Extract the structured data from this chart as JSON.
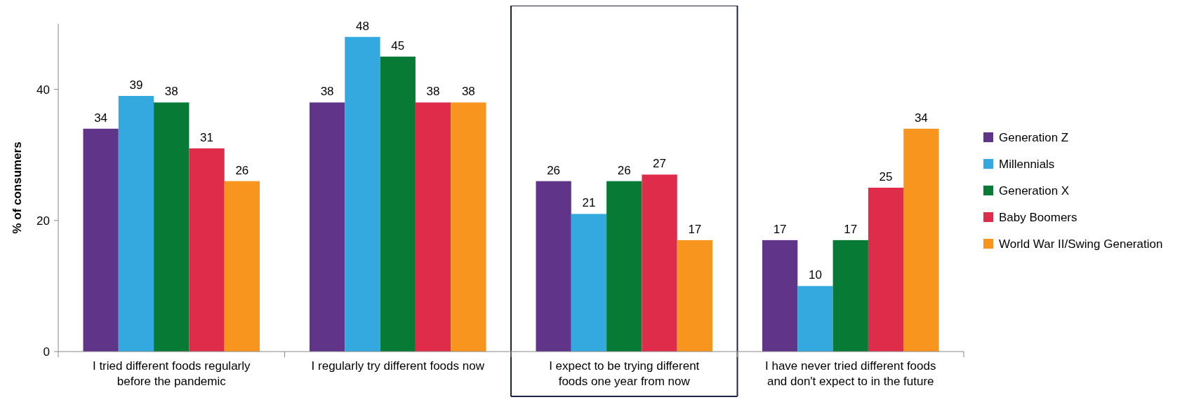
{
  "chart_data": {
    "type": "bar",
    "ylabel": "% of consumers",
    "categories": [
      "I tried different foods regularly before the pandemic",
      "I regularly try different foods now",
      "I expect to be trying different foods one year from now",
      "I have never tried different foods and don't expect to in the future"
    ],
    "series": [
      {
        "name": "Generation Z",
        "color": "#5f3489",
        "values": [
          34,
          38,
          26,
          17
        ]
      },
      {
        "name": "Millennials",
        "color": "#33a9df",
        "values": [
          39,
          48,
          21,
          10
        ]
      },
      {
        "name": "Generation X",
        "color": "#077a36",
        "values": [
          38,
          45,
          26,
          17
        ]
      },
      {
        "name": "Baby Boomers",
        "color": "#e02c4b",
        "values": [
          31,
          38,
          27,
          25
        ]
      },
      {
        "name": "World War II/Swing Generation",
        "color": "#f7951f",
        "values": [
          26,
          38,
          17,
          34
        ]
      }
    ],
    "ylim": [
      0,
      50
    ],
    "yticks": [
      0,
      20,
      40
    ],
    "data_labels": true,
    "grid": false,
    "legend": "right"
  }
}
